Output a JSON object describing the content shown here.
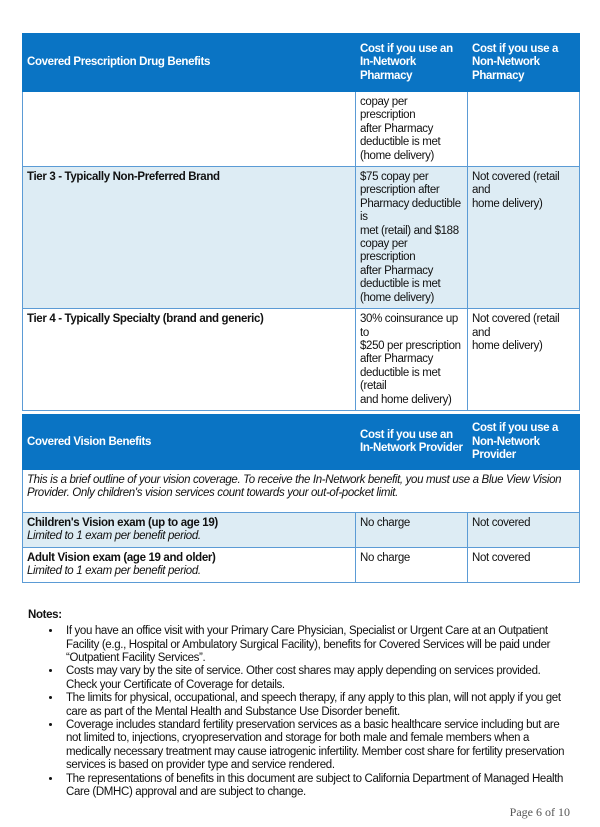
{
  "rx_table": {
    "headers": [
      "Covered Prescription Drug Benefits",
      "Cost if you use an In-Network Pharmacy",
      "Cost if you use a Non-Network Pharmacy"
    ],
    "rows": [
      {
        "benefit": "",
        "in_network": "copay per prescription\nafter Pharmacy\ndeductible is met\n(home delivery)",
        "non_network": ""
      },
      {
        "benefit": "Tier 3 - Typically Non-Preferred Brand",
        "in_network": "$75 copay per\nprescription after\nPharmacy deductible is\nmet (retail) and $188\ncopay per prescription\nafter Pharmacy\ndeductible is met\n(home delivery)",
        "non_network": "Not covered (retail and\nhome delivery)"
      },
      {
        "benefit": "Tier 4 - Typically Specialty (brand and generic)",
        "in_network": "30% coinsurance up to\n$250 per prescription\nafter Pharmacy\ndeductible is met (retail\nand home delivery)",
        "non_network": "Not covered (retail and\nhome delivery)"
      }
    ]
  },
  "vision_table": {
    "headers": [
      "Covered Vision Benefits",
      "Cost if you use an In-Network Provider",
      "Cost if you use a Non-Network Provider"
    ],
    "intro": "This is a brief outline of your vision coverage. To receive the In-Network benefit, you must use a Blue View Vision Provider. Only children's vision services count towards your out-of-pocket limit.",
    "rows": [
      {
        "benefit": "Children's Vision exam (up to age 19)",
        "note": "Limited to 1 exam per benefit period.",
        "in_network": "No charge",
        "non_network": "Not covered"
      },
      {
        "benefit": "Adult Vision exam (age 19 and older)",
        "note": "Limited to 1 exam per benefit period.",
        "in_network": "No charge",
        "non_network": "Not covered"
      }
    ]
  },
  "notes": {
    "title": "Notes:",
    "items": [
      "If you have an office visit with your Primary Care Physician, Specialist or Urgent Care at an Outpatient Facility (e.g., Hospital or Ambulatory Surgical Facility), benefits for Covered Services will be paid under “Outpatient Facility Services”.",
      "Costs may vary by the site of service. Other cost shares may apply depending on services provided. Check your Certificate of Coverage for details.",
      "The limits for physical, occupational, and speech therapy, if any apply to this plan, will not apply if you get care as part of the Mental Health and Substance Use Disorder benefit.",
      "Coverage includes standard fertility preservation services as a basic healthcare service including but are not limited to, injections, cryopreservation and storage for both male and female members when a medically necessary treatment may cause iatrogenic infertility. Member cost share for fertility preservation services is based on provider type and service rendered.",
      "The representations of benefits in this document are subject to California Department of Managed Health Care (DMHC) approval and are subject to change."
    ]
  },
  "page_number": "Page 6 of 10",
  "colors": {
    "header_blue": "#0a74c4",
    "row_tint": "#ddecf4",
    "border": "#5b9bd5"
  }
}
